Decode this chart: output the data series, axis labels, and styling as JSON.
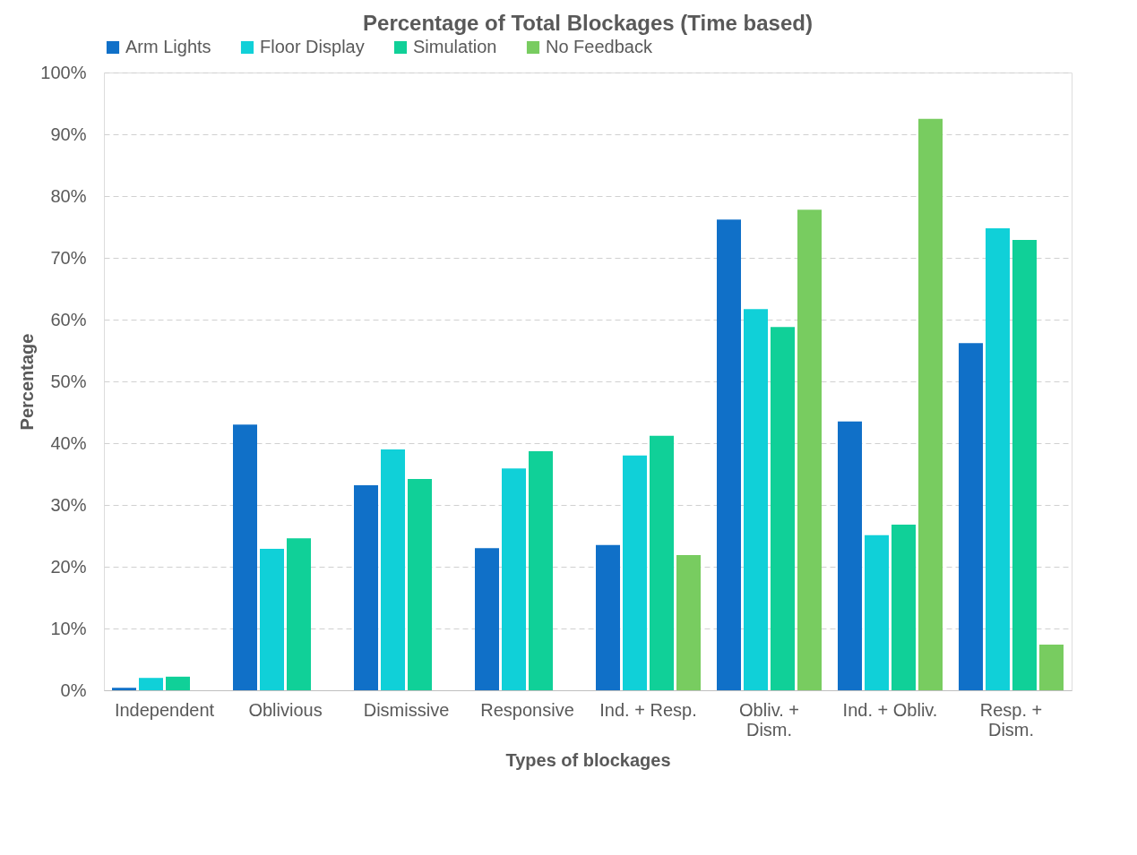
{
  "chart_data": {
    "type": "bar",
    "title": "Percentage of Total Blockages (Time based)",
    "xlabel": "Types of blockages",
    "ylabel": "Percentage",
    "categories": [
      "Independent",
      "Oblivious",
      "Dismissive",
      "Responsive",
      "Ind. + Resp.",
      "Obliv. +\nDism.",
      "Ind. + Obliv.",
      "Resp. +\nDism."
    ],
    "series": [
      {
        "name": "Arm Lights",
        "color": "#1070c8",
        "values": [
          0.4,
          43.0,
          33.2,
          23.0,
          23.5,
          76.2,
          43.5,
          56.2
        ]
      },
      {
        "name": "Floor Display",
        "color": "#10d0d8",
        "values": [
          2.0,
          22.9,
          39.0,
          35.9,
          38.0,
          61.7,
          25.1,
          74.8
        ]
      },
      {
        "name": "Simulation",
        "color": "#10d098",
        "values": [
          2.2,
          24.6,
          34.2,
          38.7,
          41.2,
          58.8,
          26.8,
          72.9
        ]
      },
      {
        "name": "No Feedback",
        "color": "#78cc60",
        "values": [
          null,
          null,
          null,
          null,
          21.9,
          77.8,
          92.5,
          7.4
        ]
      }
    ],
    "ylim": [
      0,
      100
    ],
    "yticks": [
      {
        "value": 0,
        "label": "0%"
      },
      {
        "value": 10,
        "label": "10%"
      },
      {
        "value": 20,
        "label": "20%"
      },
      {
        "value": 30,
        "label": "30%"
      },
      {
        "value": 40,
        "label": "40%"
      },
      {
        "value": 50,
        "label": "50%"
      },
      {
        "value": 60,
        "label": "60%"
      },
      {
        "value": 70,
        "label": "70%"
      },
      {
        "value": 80,
        "label": "80%"
      },
      {
        "value": 90,
        "label": "90%"
      },
      {
        "value": 100,
        "label": "100%"
      }
    ],
    "grid": "y",
    "legend": "top"
  }
}
